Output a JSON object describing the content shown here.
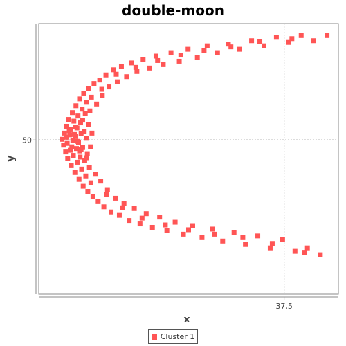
{
  "chart_data": {
    "type": "scatter",
    "title": "double-moon",
    "xlabel": "x",
    "ylabel": "y",
    "xlim": [
      -10,
      48
    ],
    "ylim": [
      5,
      84
    ],
    "x_ticks": [
      {
        "value": 37.5,
        "label": "37,5"
      }
    ],
    "y_ticks": [
      {
        "value": 50,
        "label": "50"
      }
    ],
    "crosshair": {
      "x": 37.5,
      "y": 50
    },
    "grid": false,
    "legend_position": "bottom",
    "series": [
      {
        "name": "Cluster 1",
        "color": "#ff5555",
        "points": [
          [
            -5.5,
            50.2
          ],
          [
            -5.2,
            48.5
          ],
          [
            -5.0,
            52.0
          ],
          [
            -4.8,
            46.5
          ],
          [
            -4.7,
            54.0
          ],
          [
            -4.5,
            49.0
          ],
          [
            -4.4,
            44.5
          ],
          [
            -4.2,
            56.0
          ],
          [
            -4.0,
            51.5
          ],
          [
            -3.9,
            47.0
          ],
          [
            -3.8,
            53.0
          ],
          [
            -3.7,
            42.5
          ],
          [
            -3.5,
            58.0
          ],
          [
            -3.4,
            49.8
          ],
          [
            -3.3,
            45.5
          ],
          [
            -3.2,
            55.5
          ],
          [
            -3.0,
            40.5
          ],
          [
            -2.9,
            51.0
          ],
          [
            -2.8,
            60.0
          ],
          [
            -2.7,
            47.5
          ],
          [
            -2.6,
            53.5
          ],
          [
            -2.5,
            43.5
          ],
          [
            -2.4,
            57.0
          ],
          [
            -2.3,
            49.3
          ],
          [
            -2.2,
            38.5
          ],
          [
            -2.1,
            62.0
          ],
          [
            -2.0,
            45.0
          ],
          [
            -1.9,
            55.0
          ],
          [
            -1.8,
            51.8
          ],
          [
            -1.7,
            41.5
          ],
          [
            -1.6,
            59.0
          ],
          [
            -1.5,
            47.8
          ],
          [
            -1.4,
            36.5
          ],
          [
            -1.3,
            63.5
          ],
          [
            -1.2,
            52.5
          ],
          [
            -1.1,
            44.0
          ],
          [
            -1.0,
            57.8
          ],
          [
            -0.9,
            39.5
          ],
          [
            -0.8,
            50.5
          ],
          [
            -0.7,
            61.0
          ],
          [
            -0.6,
            46.0
          ],
          [
            -0.5,
            35.0
          ],
          [
            -0.4,
            54.5
          ],
          [
            -0.3,
            65.0
          ],
          [
            -0.2,
            42.0
          ],
          [
            -0.1,
            58.5
          ],
          [
            0.0,
            48.0
          ],
          [
            0.1,
            37.5
          ],
          [
            0.2,
            62.5
          ],
          [
            0.3,
            52.0
          ],
          [
            -4.6,
            50.8
          ],
          [
            -3.6,
            48.0
          ],
          [
            -2.9,
            53.8
          ],
          [
            -2.1,
            46.8
          ],
          [
            -1.5,
            55.8
          ],
          [
            -0.8,
            44.8
          ],
          [
            -3.1,
            51.6
          ],
          [
            -2.5,
            49.6
          ],
          [
            -1.8,
            47.2
          ],
          [
            -4.1,
            52.8
          ],
          [
            0.5,
            33.5
          ],
          [
            0.7,
            66.5
          ],
          [
            1.0,
            40.0
          ],
          [
            1.2,
            60.5
          ],
          [
            1.5,
            32.0
          ],
          [
            1.8,
            67.5
          ],
          [
            2.0,
            38.0
          ],
          [
            2.3,
            63.0
          ],
          [
            2.6,
            30.5
          ],
          [
            3.0,
            69.0
          ],
          [
            3.3,
            35.5
          ],
          [
            3.6,
            65.5
          ],
          [
            4.0,
            29.0
          ],
          [
            4.4,
            70.5
          ],
          [
            4.8,
            33.0
          ],
          [
            5.2,
            67.0
          ],
          [
            5.6,
            28.0
          ],
          [
            6.0,
            71.5
          ],
          [
            6.5,
            31.5
          ],
          [
            7.0,
            68.5
          ],
          [
            7.5,
            26.5
          ],
          [
            8.0,
            72.5
          ],
          [
            8.5,
            30.0
          ],
          [
            9.0,
            70.0
          ],
          [
            9.6,
            25.5
          ],
          [
            10.2,
            73.5
          ],
          [
            10.8,
            28.5
          ],
          [
            11.4,
            71.0
          ],
          [
            12.0,
            24.5
          ],
          [
            12.7,
            74.5
          ],
          [
            13.4,
            27.5
          ],
          [
            14.1,
            72.0
          ],
          [
            14.8,
            23.5
          ],
          [
            15.6,
            75.5
          ],
          [
            16.4,
            26.0
          ],
          [
            17.2,
            73.0
          ],
          [
            18.0,
            22.5
          ],
          [
            18.9,
            76.5
          ],
          [
            19.8,
            25.0
          ],
          [
            20.7,
            74.0
          ],
          [
            21.6,
            21.5
          ],
          [
            22.6,
            77.5
          ],
          [
            23.6,
            24.0
          ],
          [
            24.6,
            75.5
          ],
          [
            25.6,
            20.5
          ],
          [
            26.7,
            78.0
          ],
          [
            27.8,
            23.0
          ],
          [
            28.9,
            76.5
          ],
          [
            30.0,
            19.5
          ],
          [
            31.2,
            79.0
          ],
          [
            32.4,
            22.0
          ],
          [
            33.6,
            77.5
          ],
          [
            34.8,
            18.5
          ],
          [
            36.0,
            80.0
          ],
          [
            37.2,
            21.0
          ],
          [
            38.4,
            78.5
          ],
          [
            39.6,
            17.5
          ],
          [
            40.8,
            80.5
          ],
          [
            42.0,
            18.5
          ],
          [
            43.2,
            79.0
          ],
          [
            44.5,
            16.5
          ],
          [
            45.8,
            80.5
          ],
          [
            2.2,
            64.8
          ],
          [
            3.1,
            34.0
          ],
          [
            5.0,
            69.2
          ],
          [
            6.2,
            30.2
          ],
          [
            8.8,
            71.2
          ],
          [
            10.0,
            27.2
          ],
          [
            13.0,
            73.2
          ],
          [
            14.5,
            25.2
          ],
          [
            17.5,
            74.8
          ],
          [
            19.0,
            23.8
          ],
          [
            22.0,
            76.2
          ],
          [
            24.0,
            22.5
          ],
          [
            27.2,
            77.2
          ],
          [
            29.5,
            21.5
          ],
          [
            32.8,
            78.8
          ],
          [
            35.2,
            19.8
          ],
          [
            39.0,
            79.6
          ],
          [
            41.5,
            17.2
          ]
        ]
      }
    ]
  }
}
